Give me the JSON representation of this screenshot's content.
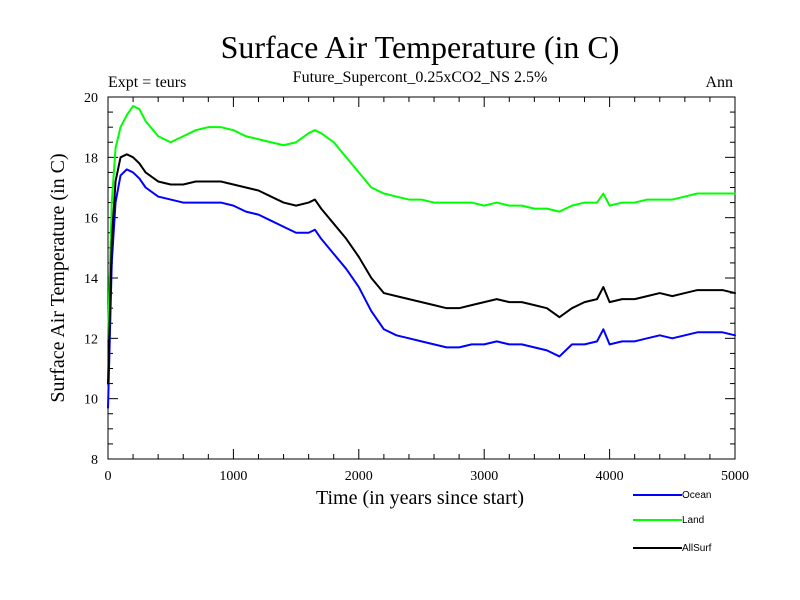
{
  "chart_data": {
    "type": "line",
    "title": "Surface Air Temperature (in C)",
    "subtitle": "Future_Supercont_0.25xCO2_NS 2.5%",
    "expt_label": "Expt = teurs",
    "season_label": "Ann",
    "xlabel": "Time (in years since start)",
    "ylabel": "Surface Air Temperature (in C)",
    "xlim": [
      0,
      5000
    ],
    "ylim": [
      8,
      20
    ],
    "x_ticks": [
      0,
      1000,
      2000,
      3000,
      4000,
      5000
    ],
    "y_ticks": [
      8,
      10,
      12,
      14,
      16,
      18,
      20
    ],
    "grid": false,
    "legend_position": "bottom-right",
    "series": [
      {
        "name": "Ocean",
        "color": "#0000ff",
        "x": [
          0,
          30,
          60,
          100,
          150,
          200,
          250,
          300,
          400,
          500,
          600,
          700,
          800,
          900,
          1000,
          1100,
          1200,
          1300,
          1400,
          1500,
          1600,
          1650,
          1700,
          1800,
          1900,
          2000,
          2100,
          2200,
          2300,
          2400,
          2500,
          2600,
          2700,
          2800,
          2900,
          3000,
          3100,
          3200,
          3300,
          3400,
          3500,
          3600,
          3700,
          3800,
          3900,
          3950,
          4000,
          4100,
          4200,
          4300,
          4400,
          4500,
          4600,
          4700,
          4800,
          4900,
          5000
        ],
        "values": [
          9.7,
          14.5,
          16.5,
          17.4,
          17.6,
          17.5,
          17.3,
          17.0,
          16.7,
          16.6,
          16.5,
          16.5,
          16.5,
          16.5,
          16.4,
          16.2,
          16.1,
          15.9,
          15.7,
          15.5,
          15.5,
          15.6,
          15.3,
          14.8,
          14.3,
          13.7,
          12.9,
          12.3,
          12.1,
          12.0,
          11.9,
          11.8,
          11.7,
          11.7,
          11.8,
          11.8,
          11.9,
          11.8,
          11.8,
          11.7,
          11.6,
          11.4,
          11.8,
          11.8,
          11.9,
          12.3,
          11.8,
          11.9,
          11.9,
          12.0,
          12.1,
          12.0,
          12.1,
          12.2,
          12.2,
          12.2,
          12.1
        ]
      },
      {
        "name": "Land",
        "color": "#00ff00",
        "x": [
          0,
          30,
          60,
          100,
          150,
          200,
          250,
          300,
          400,
          500,
          600,
          700,
          800,
          900,
          1000,
          1100,
          1200,
          1300,
          1400,
          1500,
          1600,
          1650,
          1700,
          1800,
          1900,
          2000,
          2100,
          2200,
          2300,
          2400,
          2500,
          2600,
          2700,
          2800,
          2900,
          3000,
          3100,
          3200,
          3300,
          3400,
          3500,
          3600,
          3700,
          3800,
          3900,
          3950,
          4000,
          4100,
          4200,
          4300,
          4400,
          4500,
          4600,
          4700,
          4800,
          4900,
          5000
        ],
        "values": [
          12.0,
          16.5,
          18.3,
          19.0,
          19.4,
          19.7,
          19.6,
          19.2,
          18.7,
          18.5,
          18.7,
          18.9,
          19.0,
          19.0,
          18.9,
          18.7,
          18.6,
          18.5,
          18.4,
          18.5,
          18.8,
          18.9,
          18.8,
          18.5,
          18.0,
          17.5,
          17.0,
          16.8,
          16.7,
          16.6,
          16.6,
          16.5,
          16.5,
          16.5,
          16.5,
          16.4,
          16.5,
          16.4,
          16.4,
          16.3,
          16.3,
          16.2,
          16.4,
          16.5,
          16.5,
          16.8,
          16.4,
          16.5,
          16.5,
          16.6,
          16.6,
          16.6,
          16.7,
          16.8,
          16.8,
          16.8,
          16.8
        ]
      },
      {
        "name": "AllSurf",
        "color": "#000000",
        "x": [
          0,
          30,
          60,
          100,
          150,
          200,
          250,
          300,
          400,
          500,
          600,
          700,
          800,
          900,
          1000,
          1100,
          1200,
          1300,
          1400,
          1500,
          1600,
          1650,
          1700,
          1800,
          1900,
          2000,
          2100,
          2200,
          2300,
          2400,
          2500,
          2600,
          2700,
          2800,
          2900,
          3000,
          3100,
          3200,
          3300,
          3400,
          3500,
          3600,
          3700,
          3800,
          3900,
          3950,
          4000,
          4100,
          4200,
          4300,
          4400,
          4500,
          4600,
          4700,
          4800,
          4900,
          5000
        ],
        "values": [
          10.5,
          15.2,
          17.2,
          18.0,
          18.1,
          18.0,
          17.8,
          17.5,
          17.2,
          17.1,
          17.1,
          17.2,
          17.2,
          17.2,
          17.1,
          17.0,
          16.9,
          16.7,
          16.5,
          16.4,
          16.5,
          16.6,
          16.3,
          15.8,
          15.3,
          14.7,
          14.0,
          13.5,
          13.4,
          13.3,
          13.2,
          13.1,
          13.0,
          13.0,
          13.1,
          13.2,
          13.3,
          13.2,
          13.2,
          13.1,
          13.0,
          12.7,
          13.0,
          13.2,
          13.3,
          13.7,
          13.2,
          13.3,
          13.3,
          13.4,
          13.5,
          13.4,
          13.5,
          13.6,
          13.6,
          13.6,
          13.5
        ]
      }
    ]
  }
}
